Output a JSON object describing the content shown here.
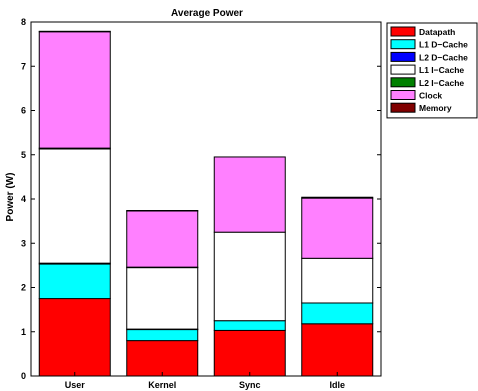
{
  "chart_data": {
    "type": "bar",
    "stacked": true,
    "title": "Average Power",
    "xlabel": "",
    "ylabel": "Power (W)",
    "ylim": [
      0,
      8
    ],
    "yticks": [
      "0",
      "1",
      "2",
      "3",
      "4",
      "5",
      "6",
      "7",
      "8"
    ],
    "grid": false,
    "legend_position": "right-top",
    "categories": [
      "User",
      "Kernel",
      "Sync",
      "Idle"
    ],
    "series": [
      {
        "name": "Datapath",
        "color": "#ff0000",
        "values": [
          1.75,
          0.8,
          1.03,
          1.18
        ]
      },
      {
        "name": "L1 D−Cache",
        "color": "#00ffff",
        "values": [
          0.78,
          0.25,
          0.22,
          0.47
        ]
      },
      {
        "name": "L2 D−Cache",
        "color": "#0000ff",
        "values": [
          0.02,
          0.01,
          0.0,
          0.0
        ]
      },
      {
        "name": "L1 I−Cache",
        "color": "#ffffff",
        "values": [
          2.58,
          1.39,
          2.0,
          1.01
        ]
      },
      {
        "name": "L2 I−Cache",
        "color": "#008000",
        "values": [
          0.02,
          0.01,
          0.0,
          0.0
        ]
      },
      {
        "name": "Clock",
        "color": "#ff80ff",
        "values": [
          2.63,
          1.27,
          1.7,
          1.36
        ]
      },
      {
        "name": "Memory",
        "color": "#800000",
        "values": [
          0.01,
          0.01,
          0.0,
          0.02
        ]
      }
    ]
  }
}
